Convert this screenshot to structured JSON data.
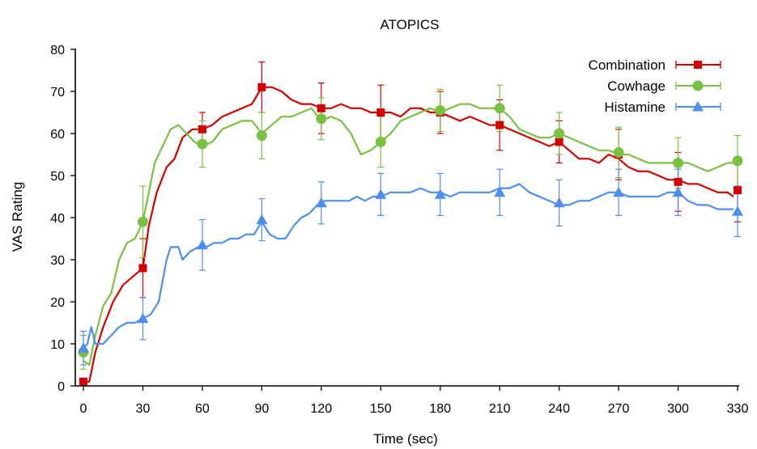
{
  "chart_data": {
    "type": "line",
    "title": "ATOPICS",
    "xlabel": "Time (sec)",
    "ylabel": "VAS Rating",
    "xlim": [
      0,
      330
    ],
    "ylim": [
      0,
      80
    ],
    "xticks": [
      "0",
      "30",
      "60",
      "90",
      "120",
      "150",
      "180",
      "210",
      "240",
      "270",
      "300",
      "330"
    ],
    "yticks": [
      "0",
      "10",
      "20",
      "30",
      "40",
      "50",
      "60",
      "70",
      "80"
    ],
    "grid": false,
    "legend": "top-right",
    "series": [
      {
        "name": "Combination",
        "color": "#d40000",
        "marker": "square",
        "line": [
          [
            0,
            1
          ],
          [
            3,
            1
          ],
          [
            6,
            8
          ],
          [
            10,
            14
          ],
          [
            15,
            20
          ],
          [
            20,
            24
          ],
          [
            25,
            26
          ],
          [
            30,
            28
          ],
          [
            33,
            38
          ],
          [
            37,
            46
          ],
          [
            42,
            52
          ],
          [
            46,
            54
          ],
          [
            50,
            59
          ],
          [
            55,
            61
          ],
          [
            60,
            61
          ],
          [
            65,
            62
          ],
          [
            70,
            64
          ],
          [
            75,
            65
          ],
          [
            80,
            66
          ],
          [
            85,
            67
          ],
          [
            90,
            71
          ],
          [
            95,
            71
          ],
          [
            100,
            70
          ],
          [
            105,
            68
          ],
          [
            110,
            67
          ],
          [
            115,
            67
          ],
          [
            120,
            66
          ],
          [
            125,
            66
          ],
          [
            130,
            67
          ],
          [
            135,
            66
          ],
          [
            140,
            66
          ],
          [
            145,
            65
          ],
          [
            150,
            65
          ],
          [
            155,
            65
          ],
          [
            160,
            64
          ],
          [
            165,
            66
          ],
          [
            170,
            66
          ],
          [
            175,
            65
          ],
          [
            180,
            65
          ],
          [
            185,
            64
          ],
          [
            190,
            63
          ],
          [
            195,
            64
          ],
          [
            200,
            63
          ],
          [
            205,
            62
          ],
          [
            210,
            62
          ],
          [
            215,
            61
          ],
          [
            220,
            60
          ],
          [
            225,
            59
          ],
          [
            230,
            58
          ],
          [
            235,
            57
          ],
          [
            240,
            58
          ],
          [
            245,
            56
          ],
          [
            250,
            54
          ],
          [
            255,
            54
          ],
          [
            260,
            53
          ],
          [
            265,
            55
          ],
          [
            270,
            54
          ],
          [
            275,
            52
          ],
          [
            280,
            51
          ],
          [
            285,
            51
          ],
          [
            290,
            50
          ],
          [
            295,
            49
          ],
          [
            300,
            49
          ],
          [
            305,
            48
          ],
          [
            310,
            48
          ],
          [
            315,
            47
          ],
          [
            320,
            46
          ],
          [
            325,
            46
          ],
          [
            328,
            45
          ]
        ],
        "points": [
          [
            0,
            1,
            0
          ],
          [
            30,
            28,
            7
          ],
          [
            60,
            61,
            4
          ],
          [
            90,
            71,
            6
          ],
          [
            120,
            66,
            6
          ],
          [
            150,
            65,
            6.5
          ],
          [
            180,
            65,
            5
          ],
          [
            210,
            62,
            6
          ],
          [
            240,
            58,
            5
          ],
          [
            270,
            55,
            6
          ],
          [
            300,
            48.5,
            7
          ],
          [
            330,
            46.5,
            7.5
          ]
        ]
      },
      {
        "name": "Cowhage",
        "color": "#7ac143",
        "marker": "circle",
        "line": [
          [
            0,
            6
          ],
          [
            3,
            5
          ],
          [
            6,
            12
          ],
          [
            10,
            19
          ],
          [
            14,
            22
          ],
          [
            18,
            30
          ],
          [
            22,
            34
          ],
          [
            26,
            35
          ],
          [
            30,
            39
          ],
          [
            33,
            46
          ],
          [
            36,
            53
          ],
          [
            40,
            57
          ],
          [
            44,
            61
          ],
          [
            48,
            62
          ],
          [
            52,
            60
          ],
          [
            56,
            58
          ],
          [
            60,
            57
          ],
          [
            65,
            58
          ],
          [
            70,
            61
          ],
          [
            75,
            62
          ],
          [
            80,
            63
          ],
          [
            85,
            63
          ],
          [
            90,
            60
          ],
          [
            95,
            62
          ],
          [
            100,
            64
          ],
          [
            105,
            64
          ],
          [
            110,
            65
          ],
          [
            115,
            66
          ],
          [
            120,
            63
          ],
          [
            125,
            64
          ],
          [
            130,
            63
          ],
          [
            135,
            60
          ],
          [
            140,
            55
          ],
          [
            145,
            56
          ],
          [
            150,
            58
          ],
          [
            155,
            60
          ],
          [
            160,
            63
          ],
          [
            165,
            64
          ],
          [
            170,
            65
          ],
          [
            175,
            66
          ],
          [
            180,
            65
          ],
          [
            185,
            66
          ],
          [
            190,
            67
          ],
          [
            195,
            67
          ],
          [
            200,
            66
          ],
          [
            205,
            66
          ],
          [
            210,
            66
          ],
          [
            215,
            64
          ],
          [
            220,
            61
          ],
          [
            225,
            60
          ],
          [
            230,
            59
          ],
          [
            235,
            59
          ],
          [
            240,
            60
          ],
          [
            245,
            59
          ],
          [
            250,
            58
          ],
          [
            255,
            57
          ],
          [
            260,
            56
          ],
          [
            265,
            56
          ],
          [
            270,
            55
          ],
          [
            275,
            55
          ],
          [
            280,
            54
          ],
          [
            285,
            53
          ],
          [
            290,
            53
          ],
          [
            295,
            53
          ],
          [
            300,
            53
          ],
          [
            305,
            53
          ],
          [
            310,
            52
          ],
          [
            315,
            51
          ],
          [
            320,
            52
          ],
          [
            325,
            53
          ],
          [
            328,
            53
          ]
        ],
        "points": [
          [
            0,
            8,
            4
          ],
          [
            30,
            39,
            8.5
          ],
          [
            60,
            57.5,
            5.5
          ],
          [
            90,
            59.5,
            5.5
          ],
          [
            120,
            63.5,
            5
          ],
          [
            150,
            58,
            6
          ],
          [
            180,
            65.5,
            5
          ],
          [
            210,
            66,
            5.5
          ],
          [
            240,
            60,
            5
          ],
          [
            270,
            55.5,
            6
          ],
          [
            300,
            53,
            6
          ],
          [
            330,
            53.5,
            6
          ]
        ]
      },
      {
        "name": "Histamine",
        "color": "#4d8ef0",
        "marker": "triangle",
        "line": [
          [
            0,
            9
          ],
          [
            2,
            10
          ],
          [
            4,
            14
          ],
          [
            6,
            10
          ],
          [
            10,
            10
          ],
          [
            14,
            12
          ],
          [
            18,
            14
          ],
          [
            22,
            15
          ],
          [
            26,
            15
          ],
          [
            30,
            16
          ],
          [
            34,
            17
          ],
          [
            38,
            20
          ],
          [
            42,
            30
          ],
          [
            44,
            33
          ],
          [
            48,
            33
          ],
          [
            50,
            30
          ],
          [
            54,
            32
          ],
          [
            58,
            33
          ],
          [
            62,
            33
          ],
          [
            66,
            34
          ],
          [
            70,
            34
          ],
          [
            74,
            35
          ],
          [
            78,
            35
          ],
          [
            82,
            36
          ],
          [
            86,
            36
          ],
          [
            90,
            39
          ],
          [
            94,
            36
          ],
          [
            98,
            35
          ],
          [
            102,
            35
          ],
          [
            106,
            38
          ],
          [
            110,
            40
          ],
          [
            114,
            41
          ],
          [
            118,
            43
          ],
          [
            122,
            44
          ],
          [
            126,
            44
          ],
          [
            130,
            44
          ],
          [
            134,
            44
          ],
          [
            138,
            45
          ],
          [
            142,
            44
          ],
          [
            146,
            45
          ],
          [
            150,
            45
          ],
          [
            155,
            46
          ],
          [
            160,
            46
          ],
          [
            165,
            46
          ],
          [
            170,
            47
          ],
          [
            175,
            46
          ],
          [
            180,
            46
          ],
          [
            185,
            45
          ],
          [
            190,
            46
          ],
          [
            195,
            46
          ],
          [
            200,
            46
          ],
          [
            205,
            46
          ],
          [
            210,
            47
          ],
          [
            215,
            47
          ],
          [
            220,
            48
          ],
          [
            225,
            46
          ],
          [
            230,
            45
          ],
          [
            235,
            44
          ],
          [
            240,
            43
          ],
          [
            245,
            43
          ],
          [
            250,
            44
          ],
          [
            255,
            44
          ],
          [
            260,
            45
          ],
          [
            265,
            46
          ],
          [
            270,
            46
          ],
          [
            275,
            45
          ],
          [
            280,
            45
          ],
          [
            285,
            45
          ],
          [
            290,
            45
          ],
          [
            295,
            46
          ],
          [
            300,
            46
          ],
          [
            305,
            44
          ],
          [
            310,
            43
          ],
          [
            315,
            43
          ],
          [
            320,
            42
          ],
          [
            325,
            42
          ],
          [
            328,
            42
          ]
        ],
        "points": [
          [
            0,
            9,
            4
          ],
          [
            30,
            16,
            5
          ],
          [
            60,
            33.5,
            6
          ],
          [
            90,
            39.5,
            5
          ],
          [
            120,
            43.5,
            5
          ],
          [
            150,
            45.5,
            5
          ],
          [
            180,
            45.5,
            5
          ],
          [
            210,
            46,
            5.5
          ],
          [
            240,
            43.5,
            5.5
          ],
          [
            270,
            46,
            5.5
          ],
          [
            300,
            46,
            5.5
          ],
          [
            330,
            41.5,
            6
          ]
        ]
      }
    ]
  }
}
